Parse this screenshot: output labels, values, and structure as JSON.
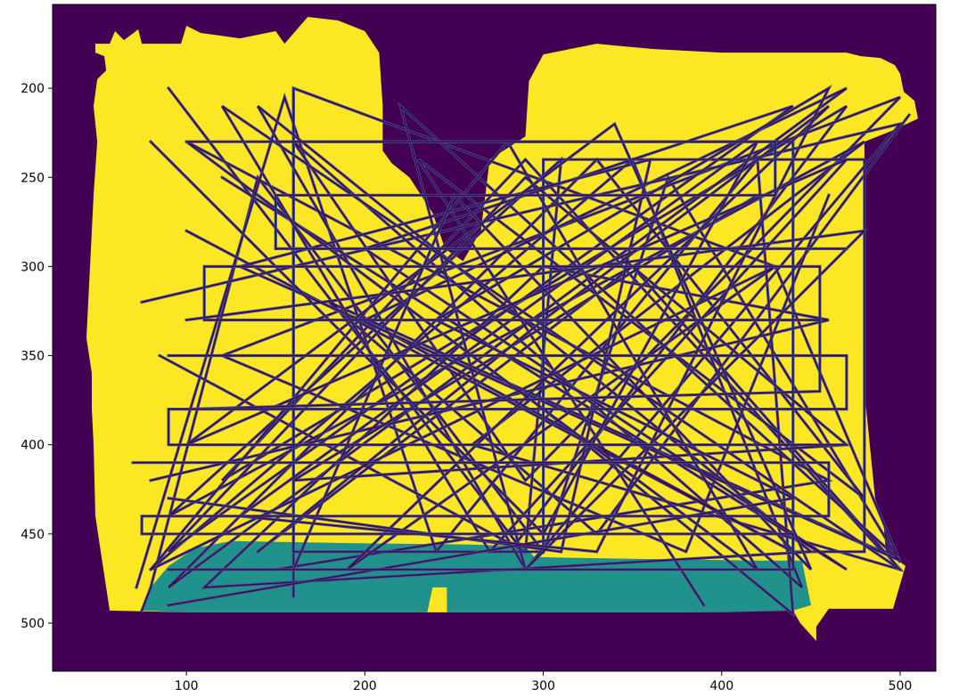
{
  "chart_data": {
    "type": "heatmap",
    "title": "",
    "xlabel": "",
    "ylabel": "",
    "xlim": [
      25,
      520
    ],
    "ylim": [
      527,
      153
    ],
    "x_ticks": [
      100,
      200,
      300,
      400,
      500
    ],
    "y_ticks": [
      200,
      250,
      300,
      350,
      400,
      450,
      500
    ],
    "colormap": "viridis",
    "colors": {
      "background": "#440154",
      "room": "#fde725",
      "lower_region": "#21918c",
      "paths": "#440154",
      "path_outline": "#3b528b"
    },
    "regions": [
      {
        "name": "room",
        "value": 1,
        "polygon": [
          [
            35,
            175
          ],
          [
            49,
            175
          ],
          [
            49,
            180
          ],
          [
            54,
            182
          ],
          [
            55,
            190
          ],
          [
            50,
            195
          ],
          [
            48,
            210
          ],
          [
            50,
            230
          ],
          [
            48,
            260
          ],
          [
            46,
            300
          ],
          [
            44,
            340
          ],
          [
            47,
            360
          ],
          [
            47,
            380
          ],
          [
            48,
            400
          ],
          [
            49,
            440
          ],
          [
            55,
            480
          ],
          [
            57,
            493
          ],
          [
            100,
            494
          ],
          [
            200,
            494
          ],
          [
            280,
            494
          ],
          [
            380,
            494
          ],
          [
            440,
            493
          ],
          [
            444,
            500
          ],
          [
            453,
            510
          ],
          [
            453,
            502
          ],
          [
            460,
            492
          ],
          [
            496,
            492
          ],
          [
            503,
            468
          ],
          [
            492,
            460
          ],
          [
            491,
            447
          ],
          [
            486,
            430
          ],
          [
            483,
            400
          ],
          [
            480,
            370
          ],
          [
            480,
            340
          ],
          [
            480,
            300
          ],
          [
            480,
            250
          ],
          [
            480,
            230
          ],
          [
            495,
            224
          ],
          [
            510,
            217
          ],
          [
            508,
            207
          ],
          [
            502,
            202
          ],
          [
            500,
            192
          ],
          [
            497,
            187
          ],
          [
            489,
            183
          ],
          [
            478,
            182
          ],
          [
            470,
            180
          ],
          [
            440,
            180
          ],
          [
            400,
            180
          ],
          [
            362,
            178
          ],
          [
            340,
            176
          ],
          [
            330,
            175
          ],
          [
            300,
            181
          ],
          [
            292,
            196
          ],
          [
            290,
            227
          ],
          [
            270,
            240
          ],
          [
            265,
            280
          ],
          [
            255,
            297
          ],
          [
            245,
            290
          ],
          [
            238,
            270
          ],
          [
            225,
            250
          ],
          [
            215,
            242
          ],
          [
            210,
            235
          ],
          [
            210,
            210
          ],
          [
            208,
            180
          ],
          [
            200,
            168
          ],
          [
            185,
            162
          ],
          [
            168,
            160
          ],
          [
            155,
            175
          ],
          [
            150,
            168
          ],
          [
            130,
            172
          ],
          [
            108,
            169
          ],
          [
            100,
            165
          ],
          [
            97,
            175
          ],
          [
            85,
            175
          ],
          [
            75,
            175
          ],
          [
            73,
            167
          ],
          [
            65,
            173
          ],
          [
            60,
            168
          ],
          [
            57,
            175
          ]
        ]
      },
      {
        "name": "lower-region",
        "value": 0.5,
        "polygon": [
          [
            75,
            493
          ],
          [
            80,
            480
          ],
          [
            90,
            468
          ],
          [
            105,
            458
          ],
          [
            125,
            454
          ],
          [
            180,
            455
          ],
          [
            260,
            456
          ],
          [
            290,
            457
          ],
          [
            295,
            463
          ],
          [
            350,
            464
          ],
          [
            420,
            465
          ],
          [
            445,
            465
          ],
          [
            450,
            490
          ],
          [
            440,
            493
          ],
          [
            400,
            494
          ],
          [
            300,
            494
          ],
          [
            246,
            494
          ],
          [
            246,
            480
          ],
          [
            238,
            480
          ],
          [
            235,
            494
          ],
          [
            200,
            494
          ],
          [
            150,
            494
          ],
          [
            100,
            494
          ]
        ]
      }
    ],
    "paths": [
      [
        [
          75,
          493
        ],
        [
          80,
          480
        ],
        [
          140,
          250
        ],
        [
          300,
          460
        ],
        [
          370,
          250
        ],
        [
          500,
          466
        ],
        [
          430,
          300
        ],
        [
          160,
          200
        ],
        [
          160,
          485
        ]
      ],
      [
        [
          90,
          200
        ],
        [
          285,
          455
        ],
        [
          470,
          210
        ],
        [
          120,
          420
        ],
        [
          290,
          240
        ],
        [
          490,
          460
        ],
        [
          180,
          320
        ],
        [
          330,
          450
        ],
        [
          505,
          215
        ]
      ],
      [
        [
          72,
          480
        ],
        [
          155,
          205
        ],
        [
          240,
          460
        ],
        [
          420,
          240
        ],
        [
          440,
          495
        ],
        [
          300,
          380
        ],
        [
          100,
          230
        ],
        [
          460,
          420
        ],
        [
          150,
          470
        ]
      ],
      [
        [
          80,
          470
        ],
        [
          350,
          240
        ],
        [
          445,
          480
        ],
        [
          160,
          230
        ],
        [
          290,
          420
        ],
        [
          500,
          205
        ],
        [
          120,
          350
        ],
        [
          380,
          460
        ],
        [
          460,
          260
        ]
      ],
      [
        [
          85,
          350
        ],
        [
          290,
          460
        ],
        [
          310,
          240
        ],
        [
          90,
          440
        ],
        [
          480,
          230
        ],
        [
          260,
          400
        ],
        [
          500,
          470
        ],
        [
          350,
          300
        ],
        [
          140,
          460
        ]
      ],
      [
        [
          100,
          280
        ],
        [
          440,
          460
        ],
        [
          200,
          330
        ],
        [
          470,
          200
        ],
        [
          90,
          480
        ],
        [
          330,
          240
        ],
        [
          480,
          430
        ],
        [
          230,
          240
        ],
        [
          390,
          490
        ]
      ],
      [
        [
          160,
          200
        ],
        [
          160,
          460
        ],
        [
          300,
          460
        ],
        [
          300,
          240
        ],
        [
          480,
          240
        ],
        [
          480,
          460
        ],
        [
          440,
          460
        ],
        [
          440,
          230
        ],
        [
          100,
          230
        ]
      ],
      [
        [
          75,
          320
        ],
        [
          500,
          220
        ],
        [
          290,
          470
        ],
        [
          140,
          210
        ],
        [
          450,
          460
        ],
        [
          110,
          480
        ],
        [
          300,
          300
        ],
        [
          460,
          330
        ],
        [
          80,
          420
        ]
      ],
      [
        [
          120,
          250
        ],
        [
          470,
          470
        ],
        [
          200,
          290
        ],
        [
          440,
          210
        ],
        [
          90,
          460
        ],
        [
          290,
          250
        ],
        [
          470,
          400
        ],
        [
          160,
          420
        ],
        [
          420,
          260
        ]
      ],
      [
        [
          90,
          430
        ],
        [
          310,
          460
        ],
        [
          360,
          240
        ],
        [
          130,
          300
        ],
        [
          500,
          465
        ],
        [
          220,
          210
        ],
        [
          290,
          470
        ],
        [
          480,
          280
        ],
        [
          100,
          330
        ]
      ],
      [
        [
          140,
          260
        ],
        [
          420,
          470
        ],
        [
          280,
          230
        ],
        [
          80,
          470
        ],
        [
          430,
          300
        ],
        [
          190,
          470
        ],
        [
          460,
          210
        ],
        [
          300,
          330
        ],
        [
          140,
          460
        ]
      ],
      [
        [
          160,
          470
        ],
        [
          250,
          260
        ],
        [
          450,
          470
        ],
        [
          340,
          220
        ],
        [
          100,
          400
        ],
        [
          470,
          240
        ],
        [
          270,
          460
        ],
        [
          120,
          210
        ],
        [
          500,
          470
        ]
      ],
      [
        [
          80,
          230
        ],
        [
          300,
          450
        ],
        [
          420,
          230
        ],
        [
          130,
          440
        ],
        [
          330,
          460
        ],
        [
          460,
          200
        ],
        [
          240,
          330
        ],
        [
          440,
          430
        ],
        [
          90,
          490
        ]
      ],
      [
        [
          70,
          410
        ],
        [
          460,
          410
        ],
        [
          460,
          440
        ],
        [
          75,
          440
        ],
        [
          75,
          450
        ],
        [
          440,
          450
        ],
        [
          440,
          470
        ],
        [
          90,
          470
        ]
      ],
      [
        [
          100,
          380
        ],
        [
          455,
          370
        ],
        [
          455,
          300
        ],
        [
          110,
          300
        ],
        [
          110,
          330
        ],
        [
          455,
          330
        ]
      ],
      [
        [
          150,
          230
        ],
        [
          430,
          230
        ],
        [
          430,
          260
        ],
        [
          150,
          260
        ],
        [
          150,
          290
        ],
        [
          470,
          290
        ]
      ],
      [
        [
          90,
          350
        ],
        [
          470,
          350
        ],
        [
          470,
          380
        ],
        [
          90,
          380
        ],
        [
          90,
          400
        ],
        [
          470,
          400
        ]
      ]
    ]
  }
}
